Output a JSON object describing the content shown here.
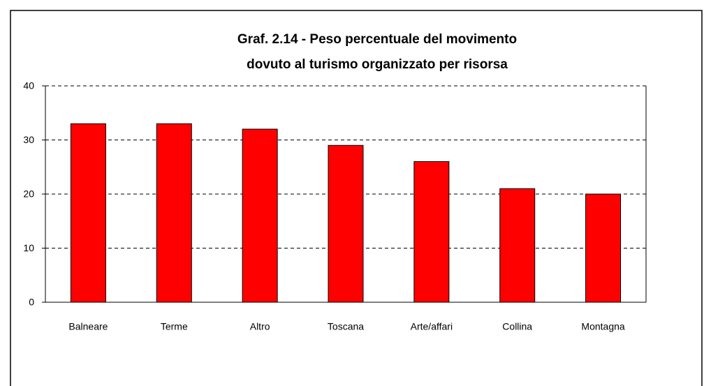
{
  "chart_data": {
    "type": "bar",
    "title": [
      "Graf. 2.14 - Peso percentuale del movimento",
      "dovuto al turismo organizzato per risorsa"
    ],
    "categories": [
      "Balneare",
      "Terme",
      "Altro",
      "Toscana",
      "Arte/affari",
      "Collina",
      "Montagna"
    ],
    "values": [
      33,
      33,
      32,
      29,
      26,
      21,
      20
    ],
    "color": "#ff0000",
    "ylim": [
      0,
      40
    ],
    "yticks": [
      0,
      10,
      20,
      30,
      40
    ],
    "grid": true
  }
}
